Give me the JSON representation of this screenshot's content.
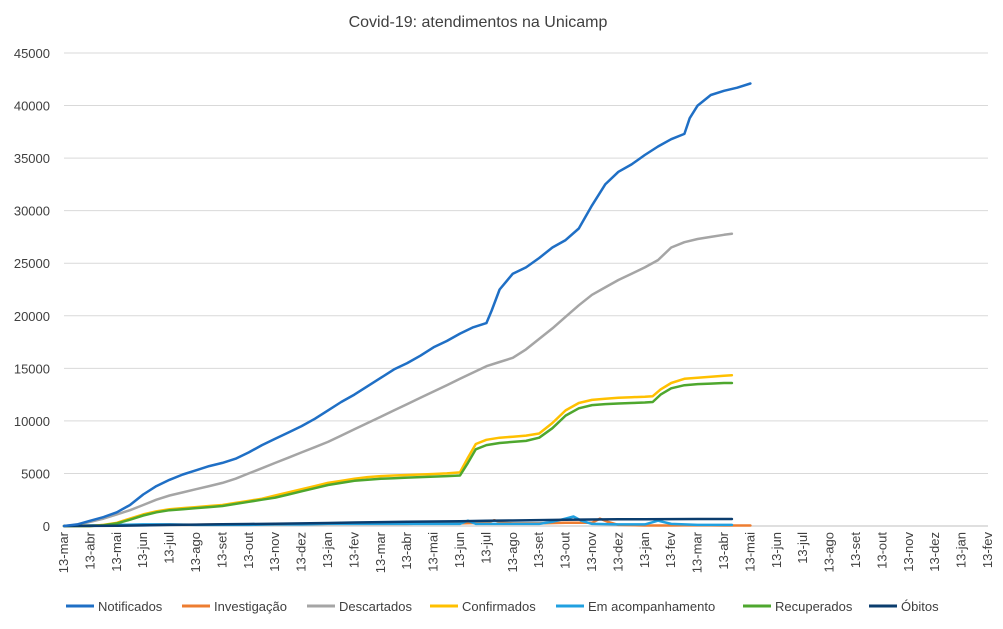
{
  "chart_data": {
    "type": "line",
    "title": "Covid-19: atendimentos  na Unicamp",
    "xlabel": "",
    "ylabel": "",
    "ylim": [
      0,
      45000
    ],
    "yticks": [
      0,
      5000,
      10000,
      15000,
      20000,
      25000,
      30000,
      35000,
      40000,
      45000
    ],
    "categories": [
      "13-mar",
      "13-abr",
      "13-mai",
      "13-jun",
      "13-jul",
      "13-ago",
      "13-set",
      "13-out",
      "13-nov",
      "13-dez",
      "13-jan",
      "13-fev",
      "13-mar",
      "13-abr",
      "13-mai",
      "13-jun",
      "13-jul",
      "13-ago",
      "13-set",
      "13-out",
      "13-nov",
      "13-dez",
      "13-jan",
      "13-fev",
      "13-mar",
      "13-abr",
      "13-mai",
      "13-jun",
      "13-jul",
      "13-ago",
      "13-set",
      "13-out",
      "13-nov",
      "13-dez",
      "13-jan",
      "13-fev"
    ],
    "grid": true,
    "legend_position": "bottom",
    "series": [
      {
        "name": "Notificados",
        "color": "#1f6fc5",
        "points": [
          [
            0,
            0
          ],
          [
            0.5,
            150
          ],
          [
            1,
            500
          ],
          [
            1.5,
            850
          ],
          [
            2,
            1300
          ],
          [
            2.5,
            2000
          ],
          [
            3,
            3000
          ],
          [
            3.5,
            3800
          ],
          [
            4,
            4400
          ],
          [
            4.5,
            4900
          ],
          [
            5,
            5300
          ],
          [
            5.5,
            5700
          ],
          [
            6,
            6000
          ],
          [
            6.5,
            6400
          ],
          [
            7,
            7000
          ],
          [
            7.5,
            7700
          ],
          [
            8,
            8300
          ],
          [
            8.5,
            8900
          ],
          [
            9,
            9500
          ],
          [
            9.5,
            10200
          ],
          [
            10,
            11000
          ],
          [
            10.5,
            11800
          ],
          [
            11,
            12500
          ],
          [
            11.5,
            13300
          ],
          [
            12,
            14100
          ],
          [
            12.5,
            14900
          ],
          [
            13,
            15500
          ],
          [
            13.5,
            16200
          ],
          [
            14,
            17000
          ],
          [
            14.5,
            17600
          ],
          [
            15,
            18300
          ],
          [
            15.5,
            18900
          ],
          [
            16,
            19300
          ],
          [
            16.2,
            20500
          ],
          [
            16.5,
            22500
          ],
          [
            17,
            24000
          ],
          [
            17.5,
            24600
          ],
          [
            18,
            25500
          ],
          [
            18.5,
            26500
          ],
          [
            19,
            27200
          ],
          [
            19.5,
            28300
          ],
          [
            20,
            30500
          ],
          [
            20.5,
            32500
          ],
          [
            21,
            33700
          ],
          [
            21.5,
            34400
          ],
          [
            22,
            35300
          ],
          [
            22.5,
            36100
          ],
          [
            23,
            36800
          ],
          [
            23.5,
            37300
          ],
          [
            23.7,
            38800
          ],
          [
            24,
            40000
          ],
          [
            24.5,
            41000
          ],
          [
            25,
            41400
          ],
          [
            25.5,
            41700
          ],
          [
            26,
            42100
          ]
        ]
      },
      {
        "name": "Investigação",
        "color": "#ed7d31",
        "points": [
          [
            0,
            0
          ],
          [
            1,
            50
          ],
          [
            2,
            100
          ],
          [
            3,
            100
          ],
          [
            4,
            120
          ],
          [
            5,
            120
          ],
          [
            6,
            150
          ],
          [
            7,
            150
          ],
          [
            8,
            150
          ],
          [
            9,
            180
          ],
          [
            10,
            200
          ],
          [
            11,
            200
          ],
          [
            12,
            200
          ],
          [
            13,
            200
          ],
          [
            14,
            250
          ],
          [
            15,
            250
          ],
          [
            16,
            300
          ],
          [
            16.3,
            550
          ],
          [
            16.6,
            300
          ],
          [
            17,
            250
          ],
          [
            18,
            250
          ],
          [
            19,
            300
          ],
          [
            20,
            300
          ],
          [
            20.3,
            700
          ],
          [
            20.6,
            400
          ],
          [
            21,
            100
          ],
          [
            22,
            50
          ],
          [
            23,
            50
          ],
          [
            24,
            80
          ],
          [
            25,
            50
          ],
          [
            26,
            50
          ]
        ]
      },
      {
        "name": "Descartados",
        "color": "#a5a5a5",
        "points": [
          [
            0,
            0
          ],
          [
            0.5,
            100
          ],
          [
            1,
            400
          ],
          [
            1.5,
            700
          ],
          [
            2,
            1100
          ],
          [
            2.5,
            1500
          ],
          [
            3,
            2000
          ],
          [
            3.5,
            2500
          ],
          [
            4,
            2900
          ],
          [
            4.5,
            3200
          ],
          [
            5,
            3500
          ],
          [
            5.5,
            3800
          ],
          [
            6,
            4100
          ],
          [
            6.5,
            4500
          ],
          [
            7,
            5000
          ],
          [
            7.5,
            5500
          ],
          [
            8,
            6000
          ],
          [
            8.5,
            6500
          ],
          [
            9,
            7000
          ],
          [
            9.5,
            7500
          ],
          [
            10,
            8000
          ],
          [
            10.5,
            8600
          ],
          [
            11,
            9200
          ],
          [
            11.5,
            9800
          ],
          [
            12,
            10400
          ],
          [
            12.5,
            11000
          ],
          [
            13,
            11600
          ],
          [
            13.5,
            12200
          ],
          [
            14,
            12800
          ],
          [
            14.5,
            13400
          ],
          [
            15,
            14000
          ],
          [
            15.5,
            14600
          ],
          [
            16,
            15200
          ],
          [
            16.5,
            15600
          ],
          [
            17,
            16000
          ],
          [
            17.5,
            16800
          ],
          [
            18,
            17800
          ],
          [
            18.5,
            18800
          ],
          [
            19,
            19900
          ],
          [
            19.5,
            21000
          ],
          [
            20,
            22000
          ],
          [
            20.5,
            22700
          ],
          [
            21,
            23400
          ],
          [
            21.5,
            24000
          ],
          [
            22,
            24600
          ],
          [
            22.5,
            25300
          ],
          [
            23,
            26500
          ],
          [
            23.5,
            27000
          ],
          [
            24,
            27300
          ],
          [
            24.5,
            27500
          ],
          [
            25,
            27700
          ],
          [
            25.3,
            27800
          ]
        ]
      },
      {
        "name": "Confirmados",
        "color": "#ffc000",
        "points": [
          [
            0,
            0
          ],
          [
            1,
            0
          ],
          [
            1.5,
            100
          ],
          [
            2,
            300
          ],
          [
            2.5,
            700
          ],
          [
            3,
            1100
          ],
          [
            3.5,
            1400
          ],
          [
            4,
            1600
          ],
          [
            4.5,
            1700
          ],
          [
            5,
            1800
          ],
          [
            5.5,
            1900
          ],
          [
            6,
            2000
          ],
          [
            6.5,
            2200
          ],
          [
            7,
            2400
          ],
          [
            7.5,
            2600
          ],
          [
            8,
            2900
          ],
          [
            8.5,
            3200
          ],
          [
            9,
            3500
          ],
          [
            9.5,
            3800
          ],
          [
            10,
            4100
          ],
          [
            10.5,
            4300
          ],
          [
            11,
            4500
          ],
          [
            11.5,
            4650
          ],
          [
            12,
            4750
          ],
          [
            12.5,
            4800
          ],
          [
            13,
            4850
          ],
          [
            13.5,
            4900
          ],
          [
            14,
            4950
          ],
          [
            14.5,
            5000
          ],
          [
            15,
            5100
          ],
          [
            15.3,
            6500
          ],
          [
            15.6,
            7800
          ],
          [
            16,
            8200
          ],
          [
            16.5,
            8400
          ],
          [
            17,
            8500
          ],
          [
            17.5,
            8600
          ],
          [
            18,
            8800
          ],
          [
            18.5,
            9800
          ],
          [
            19,
            11000
          ],
          [
            19.5,
            11700
          ],
          [
            20,
            12000
          ],
          [
            20.5,
            12100
          ],
          [
            21,
            12200
          ],
          [
            21.5,
            12250
          ],
          [
            22,
            12300
          ],
          [
            22.3,
            12350
          ],
          [
            22.6,
            13000
          ],
          [
            23,
            13600
          ],
          [
            23.5,
            14000
          ],
          [
            24,
            14100
          ],
          [
            24.5,
            14200
          ],
          [
            25,
            14300
          ],
          [
            25.3,
            14350
          ]
        ]
      },
      {
        "name": "Em acompanhamento",
        "color": "#20a0e0",
        "points": [
          [
            0,
            0
          ],
          [
            2,
            100
          ],
          [
            3,
            150
          ],
          [
            4,
            150
          ],
          [
            5,
            100
          ],
          [
            6,
            100
          ],
          [
            7,
            100
          ],
          [
            8,
            150
          ],
          [
            9,
            150
          ],
          [
            10,
            200
          ],
          [
            11,
            200
          ],
          [
            12,
            200
          ],
          [
            13,
            200
          ],
          [
            14,
            200
          ],
          [
            15,
            200
          ],
          [
            15.3,
            500
          ],
          [
            15.6,
            200
          ],
          [
            16,
            200
          ],
          [
            17,
            200
          ],
          [
            18,
            200
          ],
          [
            18.5,
            400
          ],
          [
            19,
            700
          ],
          [
            19.3,
            900
          ],
          [
            19.6,
            500
          ],
          [
            20,
            200
          ],
          [
            21,
            150
          ],
          [
            22,
            150
          ],
          [
            22.5,
            500
          ],
          [
            23,
            200
          ],
          [
            24,
            100
          ],
          [
            25,
            100
          ],
          [
            25.3,
            100
          ]
        ]
      },
      {
        "name": "Recuperados",
        "color": "#4ea72e",
        "points": [
          [
            0,
            0
          ],
          [
            1,
            0
          ],
          [
            1.5,
            80
          ],
          [
            2,
            250
          ],
          [
            2.5,
            600
          ],
          [
            3,
            1000
          ],
          [
            3.5,
            1300
          ],
          [
            4,
            1500
          ],
          [
            4.5,
            1600
          ],
          [
            5,
            1700
          ],
          [
            5.5,
            1800
          ],
          [
            6,
            1900
          ],
          [
            6.5,
            2100
          ],
          [
            7,
            2300
          ],
          [
            7.5,
            2500
          ],
          [
            8,
            2700
          ],
          [
            8.5,
            3000
          ],
          [
            9,
            3300
          ],
          [
            9.5,
            3600
          ],
          [
            10,
            3900
          ],
          [
            10.5,
            4100
          ],
          [
            11,
            4300
          ],
          [
            11.5,
            4400
          ],
          [
            12,
            4500
          ],
          [
            12.5,
            4550
          ],
          [
            13,
            4600
          ],
          [
            13.5,
            4650
          ],
          [
            14,
            4700
          ],
          [
            14.5,
            4750
          ],
          [
            15,
            4800
          ],
          [
            15.3,
            6000
          ],
          [
            15.6,
            7300
          ],
          [
            16,
            7700
          ],
          [
            16.5,
            7900
          ],
          [
            17,
            8000
          ],
          [
            17.5,
            8100
          ],
          [
            18,
            8400
          ],
          [
            18.5,
            9300
          ],
          [
            19,
            10500
          ],
          [
            19.5,
            11200
          ],
          [
            20,
            11500
          ],
          [
            20.5,
            11600
          ],
          [
            21,
            11650
          ],
          [
            21.5,
            11700
          ],
          [
            22,
            11750
          ],
          [
            22.3,
            11800
          ],
          [
            22.6,
            12500
          ],
          [
            23,
            13100
          ],
          [
            23.5,
            13400
          ],
          [
            24,
            13500
          ],
          [
            24.5,
            13550
          ],
          [
            25,
            13600
          ],
          [
            25.3,
            13600
          ]
        ]
      },
      {
        "name": "Óbitos",
        "color": "#0b3d6e",
        "points": [
          [
            0,
            0
          ],
          [
            1,
            10
          ],
          [
            2,
            30
          ],
          [
            3,
            60
          ],
          [
            4,
            100
          ],
          [
            5,
            130
          ],
          [
            6,
            160
          ],
          [
            7,
            190
          ],
          [
            8,
            220
          ],
          [
            9,
            250
          ],
          [
            10,
            290
          ],
          [
            11,
            330
          ],
          [
            12,
            370
          ],
          [
            13,
            400
          ],
          [
            14,
            430
          ],
          [
            15,
            460
          ],
          [
            16,
            490
          ],
          [
            17,
            520
          ],
          [
            18,
            560
          ],
          [
            19,
            590
          ],
          [
            20,
            620
          ],
          [
            21,
            640
          ],
          [
            22,
            650
          ],
          [
            23,
            660
          ],
          [
            24,
            665
          ],
          [
            25,
            670
          ],
          [
            25.3,
            670
          ]
        ]
      }
    ]
  }
}
